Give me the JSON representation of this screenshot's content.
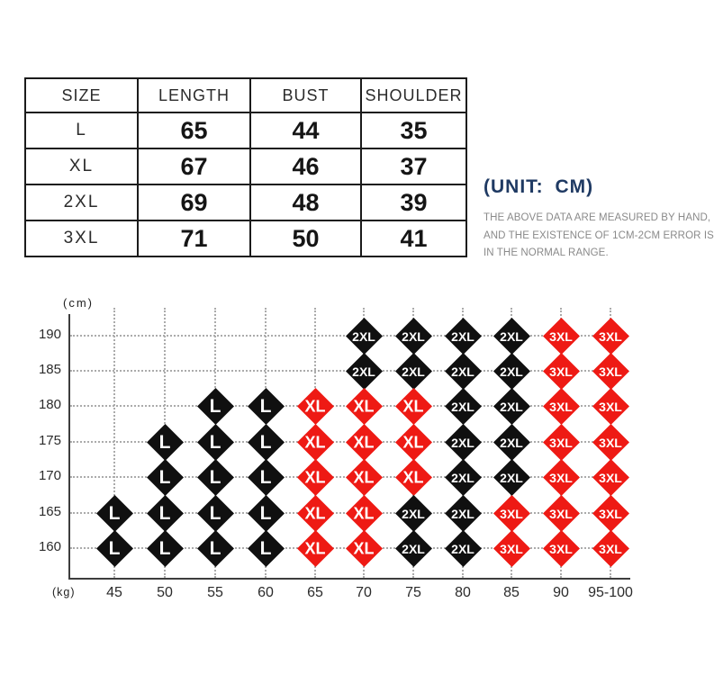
{
  "size_table": {
    "headers": [
      "SIZE",
      "LENGTH",
      "BUST",
      "SHOULDER"
    ],
    "rows": [
      [
        "L",
        "65",
        "44",
        "35"
      ],
      [
        "XL",
        "67",
        "46",
        "37"
      ],
      [
        "2XL",
        "69",
        "48",
        "39"
      ],
      [
        "3XL",
        "71",
        "50",
        "41"
      ]
    ]
  },
  "unit_note": {
    "title": "(UNIT: CM)",
    "lines": [
      "THE ABOVE DATA ARE MEASURED BY HAND,",
      "AND THE EXISTENCE OF 1CM-2CM ERROR IS",
      "IN THE NORMAL RANGE."
    ],
    "title_color": "#1f3a63",
    "note_color": "#8a8a8a"
  },
  "chart_data": {
    "type": "scatter",
    "marker_shape": "diamond",
    "xlabel": "(kg)",
    "ylabel": "(cm)",
    "x_ticks": [
      "45",
      "50",
      "55",
      "60",
      "65",
      "70",
      "75",
      "80",
      "85",
      "90",
      "95-100"
    ],
    "y_ticks": [
      "190",
      "185",
      "180",
      "175",
      "170",
      "165",
      "160"
    ],
    "grid": true,
    "marker_colors": {
      "black": "#101010",
      "red": "#ee1a14"
    },
    "points": [
      {
        "height": "190",
        "cells": [
          [
            "70",
            "2XL",
            "black"
          ],
          [
            "75",
            "2XL",
            "black"
          ],
          [
            "80",
            "2XL",
            "black"
          ],
          [
            "85",
            "2XL",
            "black"
          ],
          [
            "90",
            "3XL",
            "red"
          ],
          [
            "95-100",
            "3XL",
            "red"
          ]
        ]
      },
      {
        "height": "185",
        "cells": [
          [
            "70",
            "2XL",
            "black"
          ],
          [
            "75",
            "2XL",
            "black"
          ],
          [
            "80",
            "2XL",
            "black"
          ],
          [
            "85",
            "2XL",
            "black"
          ],
          [
            "90",
            "3XL",
            "red"
          ],
          [
            "95-100",
            "3XL",
            "red"
          ]
        ]
      },
      {
        "height": "180",
        "cells": [
          [
            "55",
            "L",
            "black"
          ],
          [
            "60",
            "L",
            "black"
          ],
          [
            "65",
            "XL",
            "red"
          ],
          [
            "70",
            "XL",
            "red"
          ],
          [
            "75",
            "XL",
            "red"
          ],
          [
            "80",
            "2XL",
            "black"
          ],
          [
            "85",
            "2XL",
            "black"
          ],
          [
            "90",
            "3XL",
            "red"
          ],
          [
            "95-100",
            "3XL",
            "red"
          ]
        ]
      },
      {
        "height": "175",
        "cells": [
          [
            "50",
            "L",
            "black"
          ],
          [
            "55",
            "L",
            "black"
          ],
          [
            "60",
            "L",
            "black"
          ],
          [
            "65",
            "XL",
            "red"
          ],
          [
            "70",
            "XL",
            "red"
          ],
          [
            "75",
            "XL",
            "red"
          ],
          [
            "80",
            "2XL",
            "black"
          ],
          [
            "85",
            "2XL",
            "black"
          ],
          [
            "90",
            "3XL",
            "red"
          ],
          [
            "95-100",
            "3XL",
            "red"
          ]
        ]
      },
      {
        "height": "170",
        "cells": [
          [
            "50",
            "L",
            "black"
          ],
          [
            "55",
            "L",
            "black"
          ],
          [
            "60",
            "L",
            "black"
          ],
          [
            "65",
            "XL",
            "red"
          ],
          [
            "70",
            "XL",
            "red"
          ],
          [
            "75",
            "XL",
            "red"
          ],
          [
            "80",
            "2XL",
            "black"
          ],
          [
            "85",
            "2XL",
            "black"
          ],
          [
            "90",
            "3XL",
            "red"
          ],
          [
            "95-100",
            "3XL",
            "red"
          ]
        ]
      },
      {
        "height": "165",
        "cells": [
          [
            "45",
            "L",
            "black"
          ],
          [
            "50",
            "L",
            "black"
          ],
          [
            "55",
            "L",
            "black"
          ],
          [
            "60",
            "L",
            "black"
          ],
          [
            "65",
            "XL",
            "red"
          ],
          [
            "70",
            "XL",
            "red"
          ],
          [
            "75",
            "2XL",
            "black"
          ],
          [
            "80",
            "2XL",
            "black"
          ],
          [
            "85",
            "3XL",
            "red"
          ],
          [
            "90",
            "3XL",
            "red"
          ],
          [
            "95-100",
            "3XL",
            "red"
          ]
        ]
      },
      {
        "height": "160",
        "cells": [
          [
            "45",
            "L",
            "black"
          ],
          [
            "50",
            "L",
            "black"
          ],
          [
            "55",
            "L",
            "black"
          ],
          [
            "60",
            "L",
            "black"
          ],
          [
            "65",
            "XL",
            "red"
          ],
          [
            "70",
            "XL",
            "red"
          ],
          [
            "75",
            "2XL",
            "black"
          ],
          [
            "80",
            "2XL",
            "black"
          ],
          [
            "85",
            "3XL",
            "red"
          ],
          [
            "90",
            "3XL",
            "red"
          ],
          [
            "95-100",
            "3XL",
            "red"
          ]
        ]
      }
    ]
  }
}
